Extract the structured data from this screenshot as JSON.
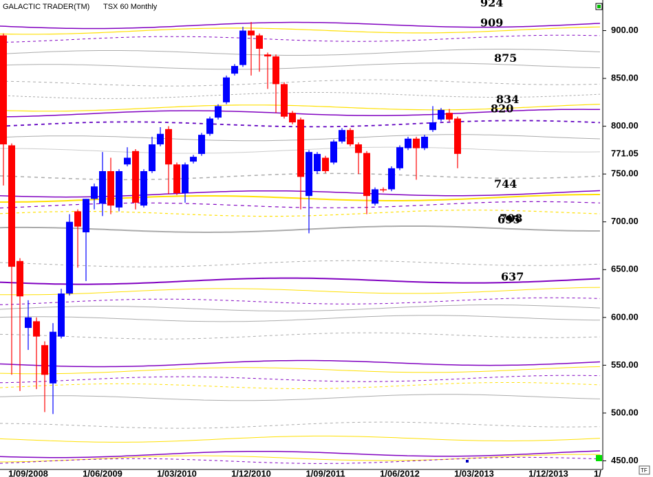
{
  "chart_data": {
    "type": "candlestick",
    "title": "GALACTIC TRADER(TM)",
    "subtitle": "TSX 60 Monthly",
    "categories": [
      null,
      null,
      null,
      "1/09/2008",
      null,
      null,
      null,
      null,
      null,
      null,
      null,
      null,
      "1/06/2009",
      null,
      null,
      null,
      null,
      null,
      null,
      null,
      null,
      "1/03/2010",
      null,
      null,
      null,
      null,
      null,
      null,
      null,
      null,
      "1/12/2010",
      null,
      null,
      null,
      null,
      null,
      null,
      null,
      null,
      "1/09/2011",
      null,
      null,
      null,
      null,
      null,
      null,
      null,
      null,
      "1/06/2012",
      null,
      null,
      null,
      null,
      null,
      null,
      null,
      null,
      "1/03/2013",
      null,
      null,
      null,
      null,
      null,
      null,
      null,
      null,
      "1/12/2013",
      null,
      null,
      null,
      null,
      null,
      "1/"
    ],
    "open": [
      895,
      780,
      659,
      589,
      596,
      571,
      531,
      580,
      625,
      711,
      689,
      724,
      719,
      753,
      715,
      760,
      774,
      717,
      753,
      781,
      797,
      760,
      730,
      763,
      771,
      792,
      809,
      825,
      855,
      864,
      900,
      895,
      875,
      873,
      844,
      814,
      807,
      727,
      753,
      767,
      762,
      784,
      796,
      781,
      772,
      719,
      734,
      734,
      756,
      777,
      787,
      777,
      796,
      807,
      814,
      808,
      null,
      null,
      null,
      null,
      null,
      null,
      null,
      null,
      null,
      null,
      null,
      null,
      null,
      null,
      null,
      null,
      null
    ],
    "high": [
      897,
      782,
      662,
      618,
      600,
      575,
      594,
      630,
      708,
      713,
      724,
      740,
      773,
      767,
      755,
      778,
      776,
      755,
      789,
      799,
      800,
      762,
      762,
      770,
      793,
      810,
      823,
      853,
      865,
      904,
      909,
      897,
      877,
      875,
      846,
      816,
      809,
      775,
      773,
      769,
      786,
      798,
      798,
      783,
      774,
      736,
      736,
      758,
      780,
      789,
      789,
      791,
      821,
      819,
      818,
      810,
      null,
      null,
      null,
      null,
      null,
      null,
      null,
      null,
      null,
      null,
      null,
      null,
      null,
      null,
      null,
      null,
      null
    ],
    "low": [
      738,
      540,
      523,
      566,
      525,
      501,
      499,
      578,
      623,
      652,
      638,
      713,
      706,
      708,
      711,
      758,
      713,
      715,
      751,
      779,
      729,
      728,
      720,
      761,
      769,
      790,
      807,
      823,
      853,
      862,
      853,
      857,
      839,
      814,
      808,
      802,
      713,
      688,
      750,
      751,
      760,
      782,
      779,
      750,
      708,
      717,
      731,
      732,
      754,
      775,
      744,
      775,
      794,
      805,
      805,
      756,
      null,
      null,
      null,
      null,
      null,
      null,
      null,
      null,
      null,
      null,
      null,
      null,
      null,
      null,
      null,
      null,
      null
    ],
    "close": [
      781,
      653,
      622,
      600,
      580,
      540,
      585,
      625,
      700,
      695,
      724,
      737,
      753,
      717,
      753,
      767,
      720,
      753,
      781,
      792,
      760,
      730,
      760,
      768,
      791,
      808,
      821,
      851,
      863,
      900,
      895,
      881,
      873,
      844,
      810,
      804,
      747,
      773,
      771,
      753,
      784,
      796,
      781,
      772,
      727,
      734,
      733,
      756,
      778,
      787,
      777,
      789,
      804,
      817,
      807,
      771.05,
      null,
      null,
      null,
      null,
      null,
      null,
      null,
      null,
      null,
      null,
      null,
      null,
      null,
      null,
      null,
      null,
      null
    ],
    "up_color": "#0000ff",
    "down_color": "#ff0000",
    "ylim": [
      441,
      932
    ],
    "yticks": [
      {
        "value": 450,
        "label": "450.00"
      },
      {
        "value": 500,
        "label": "500.00"
      },
      {
        "value": 550,
        "label": "550.00"
      },
      {
        "value": 600,
        "label": "600.00"
      },
      {
        "value": 650,
        "label": "650.00"
      },
      {
        "value": 700,
        "label": "700.00"
      },
      {
        "value": 750,
        "label": "750.00"
      },
      {
        "value": 800,
        "label": "800.00"
      },
      {
        "value": 850,
        "label": "850.00"
      },
      {
        "value": 900,
        "label": "900.00"
      }
    ],
    "levels": [
      924,
      909,
      875,
      834,
      820,
      744,
      708,
      695,
      637
    ]
  }
}
